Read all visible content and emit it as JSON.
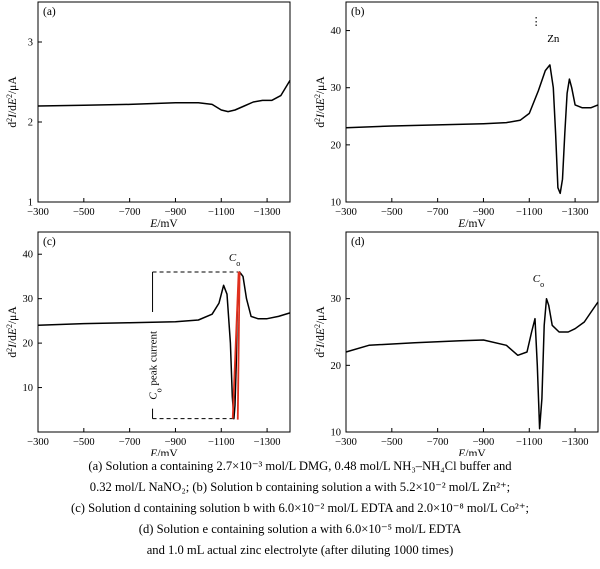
{
  "chart_data": [
    {
      "panel": "(a)",
      "type": "line",
      "xlabel": "E/mV",
      "ylabel": "d²I/dE²/μA",
      "xlim": [
        -300,
        -1400
      ],
      "ylim": [
        1,
        3.5
      ],
      "xticks": [
        -300,
        -500,
        -700,
        -900,
        -1100,
        -1300
      ],
      "yticks": [
        1,
        2,
        3
      ],
      "series": [
        {
          "x": [
            -300,
            -500,
            -700,
            -900,
            -1000,
            -1060,
            -1100,
            -1130,
            -1160,
            -1200,
            -1240,
            -1280,
            -1320,
            -1360,
            -1400
          ],
          "y": [
            2.2,
            2.21,
            2.22,
            2.24,
            2.24,
            2.22,
            2.15,
            2.13,
            2.15,
            2.2,
            2.25,
            2.27,
            2.27,
            2.33,
            2.52
          ]
        }
      ],
      "annotations": []
    },
    {
      "panel": "(b)",
      "type": "line",
      "xlabel": "E/mV",
      "ylabel": "d²I/dE²/μA",
      "xlim": [
        -300,
        -1400
      ],
      "ylim": [
        10,
        45
      ],
      "xticks": [
        -300,
        -500,
        -700,
        -900,
        -1100,
        -1300
      ],
      "yticks": [
        10,
        20,
        30,
        40
      ],
      "series": [
        {
          "x": [
            -300,
            -500,
            -700,
            -900,
            -1000,
            -1060,
            -1100,
            -1140,
            -1170,
            -1190,
            -1205,
            -1215,
            -1225,
            -1235,
            -1245,
            -1255,
            -1265,
            -1275,
            -1285,
            -1300,
            -1330,
            -1370,
            -1400
          ],
          "y": [
            23,
            23.3,
            23.5,
            23.7,
            23.9,
            24.3,
            25.5,
            29.5,
            33,
            34,
            30,
            22,
            12.5,
            11.5,
            14,
            22,
            29,
            31.5,
            30,
            27,
            26.5,
            26.5,
            27
          ]
        }
      ],
      "annotations": [
        {
          "text": "Zn",
          "x": -1205,
          "y": 38
        },
        {
          "text": "⋮",
          "x": -1130,
          "y": 41
        }
      ]
    },
    {
      "panel": "(c)",
      "type": "line",
      "xlabel": "E/mV",
      "ylabel": "d²I/dE²/μA",
      "xlim": [
        -300,
        -1400
      ],
      "ylim": [
        0,
        45
      ],
      "xticks": [
        -300,
        -500,
        -700,
        -900,
        -1100,
        -1300
      ],
      "yticks": [
        10,
        20,
        30,
        40
      ],
      "series": [
        {
          "x": [
            -300,
            -500,
            -700,
            -900,
            -1000,
            -1060,
            -1090,
            -1110,
            -1125,
            -1140,
            -1148,
            -1155,
            -1160,
            -1165,
            -1170,
            -1180,
            -1195,
            -1210,
            -1230,
            -1260,
            -1300,
            -1350,
            -1400
          ],
          "y": [
            24,
            24.4,
            24.6,
            24.8,
            25.2,
            26.5,
            29,
            33,
            31,
            20,
            8,
            3,
            6,
            15,
            28,
            36,
            35,
            30,
            26,
            25.5,
            25.5,
            26,
            26.8
          ]
        }
      ],
      "annotations": [
        {
          "text": "C",
          "sub": "o",
          "x": -1158,
          "y": 38.5
        },
        {
          "text": "C",
          "sub": "o",
          "tail": " peak current",
          "x": -800,
          "y": 15
        }
      ]
    },
    {
      "panel": "(d)",
      "type": "line",
      "xlabel": "E/mV",
      "ylabel": "d²I/dE²/μA",
      "xlim": [
        -300,
        -1400
      ],
      "ylim": [
        10,
        40
      ],
      "xticks": [
        -300,
        -500,
        -700,
        -900,
        -1100,
        -1300
      ],
      "yticks": [
        10,
        20,
        30
      ],
      "series": [
        {
          "x": [
            -300,
            -400,
            -600,
            -800,
            -900,
            -1000,
            -1050,
            -1090,
            -1110,
            -1125,
            -1135,
            -1145,
            -1155,
            -1165,
            -1175,
            -1185,
            -1200,
            -1230,
            -1270,
            -1300,
            -1340,
            -1370,
            -1400
          ],
          "y": [
            22,
            23,
            23.4,
            23.7,
            23.8,
            23,
            21.5,
            22,
            25,
            27,
            20,
            10.5,
            15,
            26,
            30,
            29,
            26,
            25,
            25,
            25.5,
            26.5,
            28,
            29.5
          ]
        }
      ],
      "annotations": [
        {
          "text": "C",
          "sub": "o",
          "x": -1140,
          "y": 32.5
        }
      ]
    }
  ],
  "caption": {
    "line1": "(a) Solution a containing 2.7×10⁻³ mol/L DMG, 0.48 mol/L NH₃–NH₄Cl buffer and",
    "line2": "0.32 mol/L NaNO₂; (b) Solution b containing solution a with 5.2×10⁻² mol/L Zn²⁺;",
    "line3": "(c) Solution d containing solution b with 6.0×10⁻² mol/L EDTA and 2.0×10⁻⁸ mol/L Co²⁺;",
    "line4": "(d) Solution e containing solution a with 6.0×10⁻⁵ mol/L EDTA",
    "line5": "and 1.0 mL actual zinc electrolyte (after diluting 1000 times)"
  }
}
